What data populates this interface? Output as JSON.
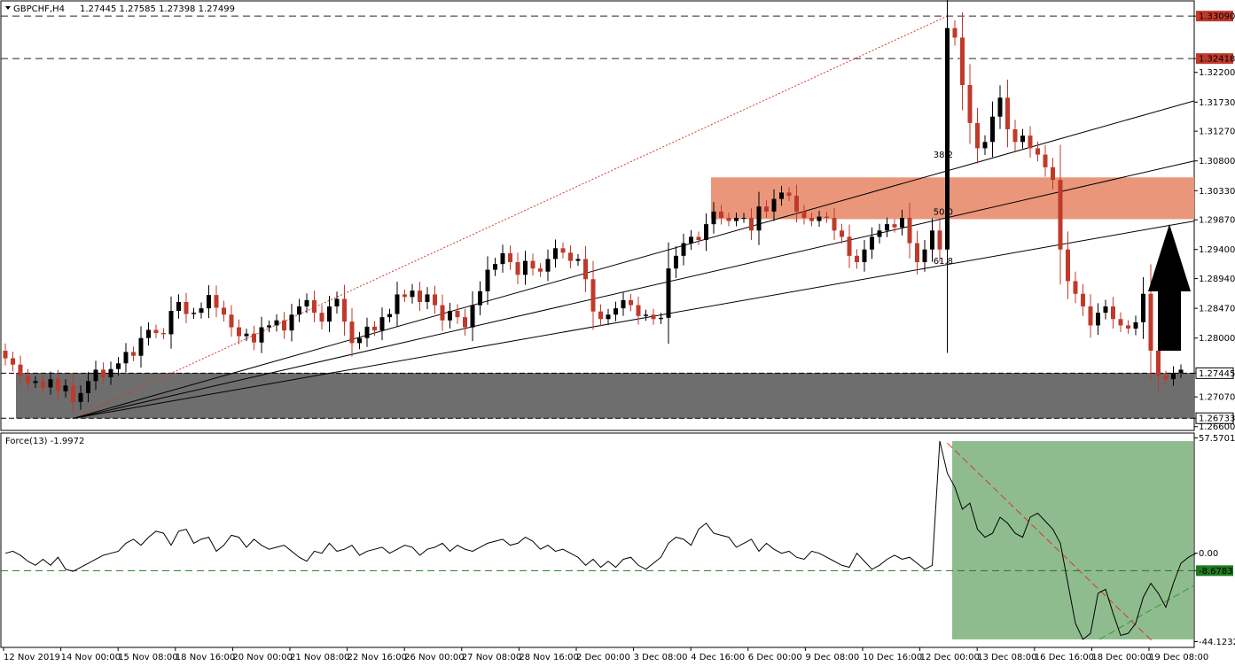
{
  "header": {
    "symbol_title": "GBPCHF,H4",
    "ohlc": "1.27445 1.27585 1.27398 1.27499"
  },
  "indicator": {
    "title": "Force(13) -1.9972"
  },
  "colors": {
    "bull": "#000000",
    "bear": "#c0392b",
    "resistance_zone": "#e9967a",
    "support_zone": "#6e6e6e",
    "force_zone": "#8fbc8f",
    "level_line": "#8b1a1a",
    "price_tag": "#c0392b",
    "force_level": "#1e7a1e",
    "force_tag": "#1e7a1e",
    "trend_red": "#d03a2a",
    "trend_green": "#2e9e2e"
  },
  "chart_data": [
    {
      "type": "candlestick",
      "title": "GBPCHF,H4",
      "y_ticks": [
        "1.33090",
        "1.32418",
        "1.32200",
        "1.31730",
        "1.31270",
        "1.30800",
        "1.30330",
        "1.29870",
        "1.29400",
        "1.28940",
        "1.28470",
        "1.28000",
        "1.27445",
        "1.27070",
        "1.26733",
        "1.26600"
      ],
      "ylim": [
        1.2654,
        1.3333
      ],
      "x_labels": [
        "12 Nov 2019",
        "14 Nov 00:00",
        "15 Nov 08:00",
        "18 Nov 16:00",
        "20 Nov 00:00",
        "21 Nov 08:00",
        "22 Nov 16:00",
        "26 Nov 00:00",
        "27 Nov 08:00",
        "28 Nov 16:00",
        "2 Dec 00:00",
        "3 Dec 08:00",
        "4 Dec 16:00",
        "6 Dec 00:00",
        "9 Dec 08:00",
        "10 Dec 16:00",
        "12 Dec 00:00",
        "13 Dec 08:00",
        "16 Dec 16:00",
        "18 Dec 00:00",
        "19 Dec 08:00"
      ],
      "horizontal_levels": [
        {
          "label": "1.33090",
          "value": 1.3309
        },
        {
          "label": "1.32418",
          "value": 1.32418
        },
        {
          "label": "1.27445",
          "value": 1.27445
        },
        {
          "label": "1.26733",
          "value": 1.26733
        }
      ],
      "zones": [
        {
          "name": "resistance",
          "from": 1.2988,
          "to": 1.3054
        },
        {
          "name": "support",
          "from": 1.2673,
          "to": 1.2745
        }
      ],
      "fibonacci_fan_labels": [
        "38.2",
        "50.0",
        "61.8"
      ],
      "closes": [
        1.2768,
        1.2758,
        1.274,
        1.2729,
        1.2732,
        1.2722,
        1.2735,
        1.2716,
        1.2725,
        1.2699,
        1.2713,
        1.2732,
        1.275,
        1.2738,
        1.2751,
        1.276,
        1.2778,
        1.2772,
        1.28,
        1.2813,
        1.2808,
        1.2806,
        1.2843,
        1.2857,
        1.2838,
        1.284,
        1.2847,
        1.2868,
        1.2848,
        1.2837,
        1.2817,
        1.2803,
        1.2807,
        1.2793,
        1.2817,
        1.282,
        1.2828,
        1.2812,
        1.2837,
        1.285,
        1.286,
        1.284,
        1.2826,
        1.285,
        1.2862,
        1.2826,
        1.2792,
        1.28,
        1.2818,
        1.2812,
        1.2833,
        1.2838,
        1.2869,
        1.2865,
        1.2875,
        1.2857,
        1.2869,
        1.2852,
        1.2828,
        1.2843,
        1.2833,
        1.2817,
        1.2852,
        1.2874,
        1.2908,
        1.2917,
        1.2934,
        1.292,
        1.29,
        1.2922,
        1.291,
        1.2905,
        1.2925,
        1.2942,
        1.2935,
        1.2922,
        1.2925,
        1.2893,
        1.2842,
        1.283,
        1.2837,
        1.2847,
        1.286,
        1.2852,
        1.2835,
        1.2837,
        1.283,
        1.2832,
        1.291,
        1.293,
        1.295,
        1.296,
        1.2955,
        1.298,
        1.3,
        1.299,
        1.2985,
        1.299,
        1.299,
        1.297,
        1.3008,
        1.3,
        1.302,
        1.303,
        1.3025,
        1.3,
        1.299,
        1.2985,
        1.2992,
        1.299,
        1.297,
        1.296,
        1.293,
        1.292,
        1.294,
        1.296,
        1.297,
        1.298,
        1.2975,
        1.299,
        1.295,
        1.292,
        1.294,
        1.297,
        1.294,
        1.329,
        1.3275,
        1.32,
        1.314,
        1.31,
        1.311,
        1.315,
        1.318,
        1.313,
        1.311,
        1.312,
        1.31,
        1.309,
        1.307,
        1.305,
        1.294,
        1.289,
        1.287,
        1.285,
        1.282,
        1.284,
        1.285,
        1.283,
        1.282,
        1.2815,
        1.2825,
        1.287,
        1.278,
        1.274,
        1.2735,
        1.2745,
        1.275
      ]
    },
    {
      "type": "line",
      "title": "Force(13) -1.9972",
      "y_ticks": [
        "57.5701",
        "0.00",
        "-8.6783",
        "-44.1232"
      ],
      "ylim": [
        -47,
        60
      ],
      "levels": [
        {
          "label": "-8.6783",
          "value": -8.6783
        }
      ],
      "values": [
        0,
        1,
        -1,
        -4,
        -6,
        -3,
        -6,
        -2,
        -8,
        -9,
        -7,
        -5,
        -3,
        -1,
        0,
        1,
        5,
        7,
        4,
        8,
        11,
        10,
        4,
        11,
        12,
        5,
        7,
        8,
        1,
        4,
        9,
        8,
        3,
        7,
        4,
        2,
        3,
        4,
        1,
        -2,
        -4,
        1,
        0,
        5,
        1,
        2,
        4,
        -1,
        1,
        2,
        3,
        0,
        2,
        4,
        3,
        -1,
        2,
        3,
        5,
        1,
        4,
        2,
        1,
        3,
        5,
        6,
        7,
        4,
        5,
        8,
        6,
        2,
        4,
        1,
        2,
        0,
        -2,
        -6,
        -3,
        -7,
        -4,
        -7,
        -3,
        -2,
        -6,
        -8,
        -5,
        -2,
        5,
        8,
        7,
        4,
        12,
        15,
        10,
        9,
        8,
        3,
        5,
        7,
        1,
        5,
        2,
        0,
        1,
        -2,
        -3,
        1,
        0,
        -2,
        -4,
        -6,
        -7,
        0,
        -4,
        -8,
        -6,
        -3,
        -1,
        -3,
        -2,
        -5,
        -8,
        -6,
        56,
        40,
        33,
        22,
        25,
        12,
        8,
        10,
        18,
        15,
        10,
        8,
        18,
        20,
        16,
        12,
        5,
        -15,
        -35,
        -43,
        -40,
        -20,
        -18,
        -30,
        -41,
        -40,
        -35,
        -22,
        -15,
        -20,
        -27,
        -15,
        -5,
        -2,
        0
      ]
    }
  ]
}
